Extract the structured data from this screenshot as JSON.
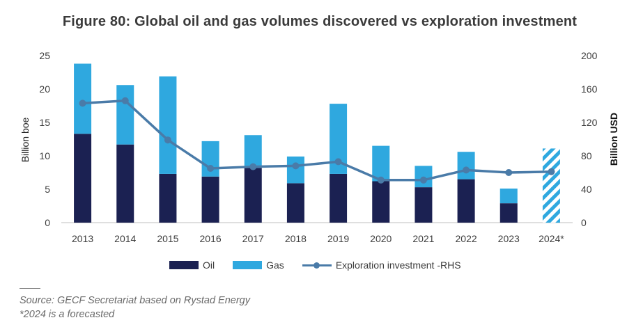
{
  "chart_data": {
    "type": "bar",
    "title": "Figure 80: Global oil and gas volumes discovered vs exploration investment",
    "categories": [
      "2013",
      "2014",
      "2015",
      "2016",
      "2017",
      "2018",
      "2019",
      "2020",
      "2021",
      "2022",
      "2023",
      "2024*"
    ],
    "series": [
      {
        "name": "Oil",
        "type": "stacked-bar",
        "axis": "left",
        "color": "#1b2152",
        "values": [
          13.3,
          11.7,
          7.3,
          6.9,
          8.2,
          5.9,
          7.3,
          6.2,
          5.3,
          6.5,
          2.9,
          null
        ]
      },
      {
        "name": "Gas",
        "type": "stacked-bar",
        "axis": "left",
        "color": "#2fa8df",
        "values": [
          10.5,
          8.9,
          14.6,
          5.3,
          4.9,
          4.0,
          10.5,
          5.3,
          3.2,
          4.1,
          2.2,
          null
        ]
      },
      {
        "name": "Exploration investment -RHS",
        "type": "line",
        "axis": "right",
        "color": "#4a7ba8",
        "values": [
          143,
          146,
          99,
          65,
          67,
          68,
          73,
          51,
          51,
          63,
          60,
          61
        ]
      }
    ],
    "forecast": {
      "category": "2024*",
      "total": 11.1,
      "pattern": "hatched",
      "color": "#2fa8df"
    },
    "ylabel": "Billion boe",
    "ylim": [
      0,
      25
    ],
    "yticks": [
      0,
      5,
      10,
      15,
      20,
      25
    ],
    "y2label": "Billion USD",
    "y2lim": [
      0,
      200
    ],
    "y2ticks": [
      0,
      40,
      80,
      120,
      160,
      200
    ],
    "grid": false,
    "legend_position": "bottom"
  },
  "notes": {
    "source": "Source: GECF Secretariat based on Rystad Energy",
    "footnote": "*2024 is a forecasted"
  }
}
